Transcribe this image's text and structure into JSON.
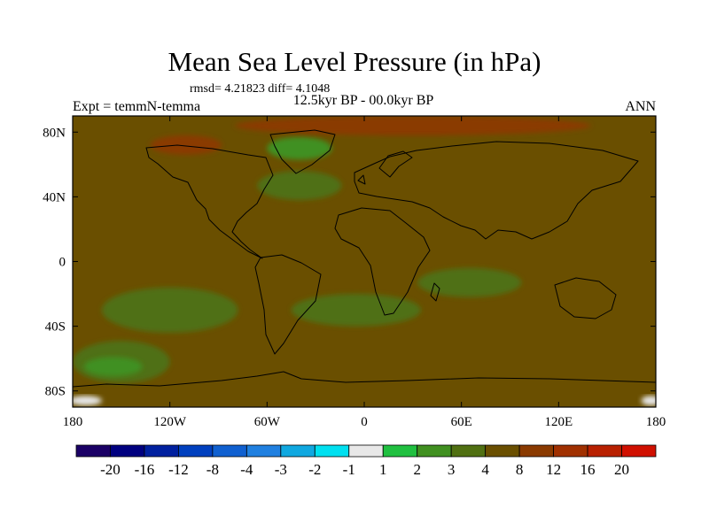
{
  "chart": {
    "title": "Mean Sea Level Pressure (in hPa)",
    "stats": "rmsd= 4.21823 diff= 4.1048",
    "period": "12.5kyr BP - 00.0kyr BP",
    "experiment": "Expt = temmN-temma",
    "season": "ANN"
  },
  "chart_data": {
    "type": "heatmap",
    "projection": "cylindrical-equidistant",
    "xlim": [
      -180,
      180
    ],
    "ylim": [
      -90,
      90
    ],
    "x_ticks": [
      {
        "value": -180,
        "label": "180"
      },
      {
        "value": -120,
        "label": "120W"
      },
      {
        "value": -60,
        "label": "60W"
      },
      {
        "value": 0,
        "label": "0"
      },
      {
        "value": 60,
        "label": "60E"
      },
      {
        "value": 120,
        "label": "120E"
      },
      {
        "value": 180,
        "label": "180"
      }
    ],
    "y_ticks": [
      {
        "value": 80,
        "label": "80N"
      },
      {
        "value": 40,
        "label": "40N"
      },
      {
        "value": 0,
        "label": "0"
      },
      {
        "value": -40,
        "label": "40S"
      },
      {
        "value": -80,
        "label": "80S"
      }
    ],
    "background_level": "4 to 8",
    "regions": [
      {
        "name": "n-atlantic-3to4",
        "lon": -40,
        "lat": 47,
        "rlon": 26,
        "rlat": 9,
        "level": "3 to 4"
      },
      {
        "name": "eastern-pacific-3to4",
        "lon": -120,
        "lat": -30,
        "rlon": 42,
        "rlat": 14,
        "level": "3 to 4"
      },
      {
        "name": "indian-ocean-3to4",
        "lon": 65,
        "lat": -13,
        "rlon": 32,
        "rlat": 9,
        "level": "3 to 4"
      },
      {
        "name": "atlantic-south-3to4",
        "lon": -5,
        "lat": -30,
        "rlon": 40,
        "rlat": 10,
        "level": "3 to 4"
      },
      {
        "name": "southern-ocean-3to4",
        "lon": -150,
        "lat": -62,
        "rlon": 30,
        "rlat": 13,
        "level": "3 to 4"
      },
      {
        "name": "greenland-2to3",
        "lon": -40,
        "lat": 70,
        "rlon": 20,
        "rlat": 7,
        "level": "2 to 3"
      },
      {
        "name": "southern-ocean-2to3",
        "lon": -155,
        "lat": -65,
        "rlon": 18,
        "rlat": 6,
        "level": "2 to 3"
      },
      {
        "name": "arctic-8to12",
        "lon": 30,
        "lat": 84,
        "rlon": 110,
        "rlat": 6,
        "level": "8 to 12"
      },
      {
        "name": "canada-8to12",
        "lon": -110,
        "lat": 72,
        "rlon": 22,
        "rlat": 6,
        "level": "8 to 12"
      },
      {
        "name": "antarctica-west-minus1to1",
        "lon": -172,
        "lat": -86,
        "rlon": 10,
        "rlat": 3,
        "level": "-1 to 1"
      },
      {
        "name": "antarctica-east-minus1to1",
        "lon": 177,
        "lat": -86,
        "rlon": 6,
        "rlat": 3,
        "level": "-1 to 1"
      }
    ],
    "colorbar": {
      "colors": [
        "#1b0066",
        "#000080",
        "#00209f",
        "#0040bf",
        "#1060d0",
        "#2080e0",
        "#10a8e0",
        "#00e0f0",
        "#e8e8e8",
        "#20c040",
        "#409020",
        "#507012",
        "#6a4f00",
        "#8a3a00",
        "#a03000",
        "#b82000",
        "#d01000"
      ],
      "labels": [
        "-20",
        "-16",
        "-12",
        "-8",
        "-4",
        "-3",
        "-2",
        "-1",
        "1",
        "2",
        "3",
        "4",
        "8",
        "12",
        "16",
        "20"
      ]
    }
  },
  "colors": {
    "level_4_8": "#6a4f00",
    "level_3_4": "#507012",
    "level_2_3": "#409020",
    "level_1_2": "#20c040",
    "level_8_12": "#8a3a00",
    "level_m1_1": "#e8e8e8"
  }
}
